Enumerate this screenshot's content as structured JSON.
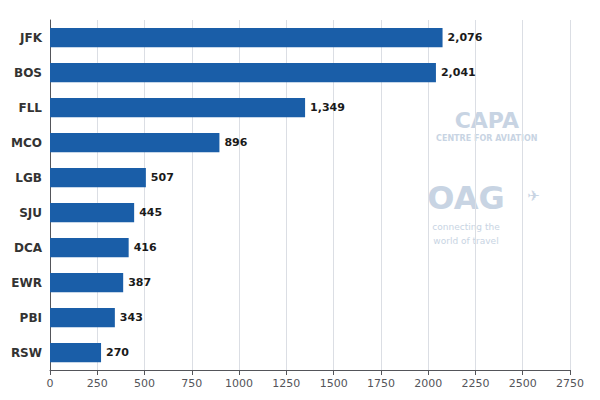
{
  "chart_data": {
    "type": "bar",
    "orientation": "horizontal",
    "categories": [
      "JFK",
      "BOS",
      "FLL",
      "MCO",
      "LGB",
      "SJU",
      "DCA",
      "EWR",
      "PBI",
      "RSW"
    ],
    "values": [
      2076,
      2041,
      1349,
      896,
      507,
      445,
      416,
      387,
      343,
      270
    ],
    "value_labels": [
      "2,076",
      "2,041",
      "1,349",
      "896",
      "507",
      "445",
      "416",
      "387",
      "343",
      "270"
    ],
    "data_labels": true,
    "color": "#1a5ea8",
    "xlim": [
      0,
      2750
    ],
    "xticks": [
      0,
      250,
      500,
      750,
      1000,
      1250,
      1500,
      1750,
      2000,
      2250,
      2500,
      2750
    ],
    "grid": true,
    "annotations": [
      {
        "text": "CAPA",
        "color": "#c8d4e3"
      },
      {
        "text": "CENTRE FOR AVIATION",
        "color": "#c8d4e3"
      },
      {
        "text": "OAG",
        "color": "#c8d4e3"
      },
      {
        "text": "✈",
        "color": "#c8d4e3"
      },
      {
        "text": "connecting the\nworld of travel",
        "color": "#c8d4e3"
      }
    ]
  }
}
